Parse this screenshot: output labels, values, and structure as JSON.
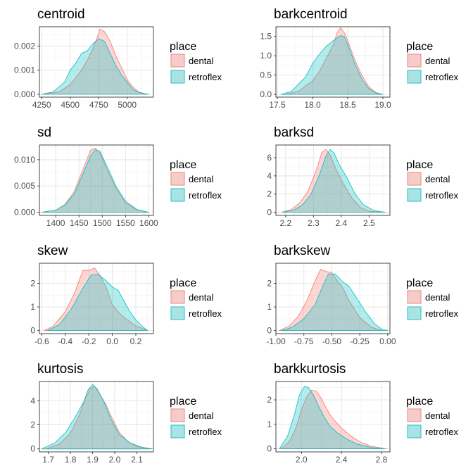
{
  "legend": {
    "title": "place",
    "items": [
      {
        "label": "dental",
        "fill": "#F8766D"
      },
      {
        "label": "retroflex",
        "fill": "#00BFC4"
      }
    ]
  },
  "chart_data": [
    {
      "type": "area",
      "title": "centroid",
      "xlim": [
        4230,
        5230
      ],
      "ylim": [
        -0.00012,
        0.0028
      ],
      "xticks": [
        4250,
        4500,
        4750,
        5000
      ],
      "xtick_labels": [
        "4250",
        "4500",
        "4750",
        "5000"
      ],
      "yticks": [
        0,
        0.001,
        0.002
      ],
      "ytick_labels": [
        "0.000",
        "0.001",
        "0.002"
      ],
      "legend_position": "right",
      "series": [
        {
          "name": "dental",
          "x": [
            4270,
            4400,
            4500,
            4600,
            4650,
            4700,
            4740,
            4760,
            4800,
            4850,
            4900,
            4950,
            5000,
            5050,
            5100,
            5150,
            5190
          ],
          "y": [
            0,
            0.0001,
            0.0004,
            0.001,
            0.0014,
            0.0019,
            0.0024,
            0.0027,
            0.0026,
            0.0022,
            0.0016,
            0.0011,
            0.0006,
            0.0003,
            0.0001,
            3e-05,
            0
          ]
        },
        {
          "name": "retroflex",
          "x": [
            4250,
            4350,
            4450,
            4500,
            4550,
            4600,
            4650,
            4700,
            4750,
            4800,
            4850,
            4900,
            4950,
            5000,
            5050,
            5100,
            5150,
            5190
          ],
          "y": [
            0,
            0.0001,
            0.0005,
            0.001,
            0.0013,
            0.0017,
            0.0018,
            0.0021,
            0.0023,
            0.0022,
            0.0017,
            0.0012,
            0.0008,
            0.0005,
            0.0002,
            8e-05,
            2e-05,
            0
          ]
        }
      ]
    },
    {
      "type": "area",
      "title": "barkcentroid",
      "xlim": [
        17.48,
        19.1
      ],
      "ylim": [
        -0.07,
        1.75
      ],
      "xticks": [
        17.5,
        18.0,
        18.5,
        19.0
      ],
      "xtick_labels": [
        "17.5",
        "18.0",
        "18.5",
        "19.0"
      ],
      "yticks": [
        0,
        0.5,
        1.0,
        1.5
      ],
      "ytick_labels": [
        "0.0",
        "0.5",
        "1.0",
        "1.5"
      ],
      "legend_position": "right",
      "series": [
        {
          "name": "dental",
          "x": [
            17.6,
            17.8,
            18.0,
            18.1,
            18.2,
            18.3,
            18.35,
            18.4,
            18.45,
            18.5,
            18.6,
            18.7,
            18.8,
            18.9,
            19.0
          ],
          "y": [
            0,
            0.08,
            0.35,
            0.6,
            0.95,
            1.3,
            1.6,
            1.72,
            1.6,
            1.4,
            0.9,
            0.5,
            0.2,
            0.05,
            0
          ]
        },
        {
          "name": "retroflex",
          "x": [
            17.55,
            17.7,
            17.9,
            18.0,
            18.1,
            18.2,
            18.3,
            18.4,
            18.45,
            18.5,
            18.6,
            18.7,
            18.8,
            18.9,
            19.0
          ],
          "y": [
            0,
            0.08,
            0.45,
            0.8,
            1.05,
            1.25,
            1.4,
            1.52,
            1.5,
            1.3,
            0.8,
            0.4,
            0.15,
            0.04,
            0
          ]
        }
      ]
    },
    {
      "type": "area",
      "title": "sd",
      "xlim": [
        1365,
        1610
      ],
      "ylim": [
        -0.0006,
        0.0128
      ],
      "xticks": [
        1400,
        1450,
        1500,
        1550,
        1600
      ],
      "xtick_labels": [
        "1400",
        "1450",
        "1500",
        "1550",
        "1600"
      ],
      "yticks": [
        0,
        0.005,
        0.01
      ],
      "ytick_labels": [
        "0.000",
        "0.005",
        "0.010"
      ],
      "legend_position": "right",
      "series": [
        {
          "name": "dental",
          "x": [
            1370,
            1400,
            1420,
            1440,
            1460,
            1475,
            1485,
            1495,
            1510,
            1530,
            1550,
            1575,
            1600
          ],
          "y": [
            0,
            0.0004,
            0.0015,
            0.004,
            0.0085,
            0.0118,
            0.0122,
            0.0113,
            0.0082,
            0.0045,
            0.0018,
            0.0004,
            0
          ]
        },
        {
          "name": "retroflex",
          "x": [
            1370,
            1400,
            1420,
            1440,
            1460,
            1475,
            1485,
            1495,
            1510,
            1530,
            1550,
            1575,
            1600
          ],
          "y": [
            0,
            0.0004,
            0.0014,
            0.0035,
            0.0076,
            0.0108,
            0.0119,
            0.0116,
            0.0088,
            0.0049,
            0.0021,
            0.0005,
            0
          ]
        }
      ]
    },
    {
      "type": "area",
      "title": "barksd",
      "xlim": [
        2.165,
        2.575
      ],
      "ylim": [
        -0.35,
        7.4
      ],
      "xticks": [
        2.2,
        2.3,
        2.4,
        2.5
      ],
      "xtick_labels": [
        "2.2",
        "2.3",
        "2.4",
        "2.5"
      ],
      "yticks": [
        0,
        2,
        4,
        6
      ],
      "ytick_labels": [
        "0",
        "2",
        "4",
        "6"
      ],
      "legend_position": "right",
      "series": [
        {
          "name": "dental",
          "x": [
            2.185,
            2.22,
            2.25,
            2.28,
            2.31,
            2.33,
            2.345,
            2.36,
            2.38,
            2.41,
            2.44,
            2.47,
            2.5,
            2.55
          ],
          "y": [
            0,
            0.3,
            1.0,
            2.3,
            4.6,
            6.6,
            6.9,
            6.3,
            4.8,
            3.0,
            1.5,
            0.5,
            0.1,
            0
          ]
        },
        {
          "name": "retroflex",
          "x": [
            2.19,
            2.23,
            2.26,
            2.29,
            2.32,
            2.345,
            2.36,
            2.375,
            2.39,
            2.42,
            2.45,
            2.48,
            2.52,
            2.56
          ],
          "y": [
            0,
            0.25,
            0.8,
            1.9,
            4.0,
            6.2,
            6.9,
            6.5,
            5.4,
            3.8,
            2.0,
            0.8,
            0.15,
            0
          ]
        }
      ]
    },
    {
      "type": "area",
      "title": "skew",
      "xlim": [
        -0.62,
        0.35
      ],
      "ylim": [
        -0.13,
        2.85
      ],
      "xticks": [
        -0.6,
        -0.4,
        -0.2,
        0.0,
        0.2
      ],
      "xtick_labels": [
        "-0.6",
        "-0.4",
        "-0.2",
        "0.0",
        "0.2"
      ],
      "yticks": [
        0,
        1,
        2
      ],
      "ytick_labels": [
        "0",
        "1",
        "2"
      ],
      "legend_position": "right",
      "series": [
        {
          "name": "dental",
          "x": [
            -0.58,
            -0.5,
            -0.4,
            -0.32,
            -0.25,
            -0.2,
            -0.15,
            -0.1,
            -0.05,
            0.0,
            0.05,
            0.1,
            0.2,
            0.3
          ],
          "y": [
            0,
            0.2,
            0.8,
            1.6,
            2.55,
            2.55,
            2.65,
            2.3,
            1.8,
            1.1,
            0.8,
            0.55,
            0.2,
            0
          ]
        },
        {
          "name": "retroflex",
          "x": [
            -0.55,
            -0.45,
            -0.35,
            -0.25,
            -0.18,
            -0.12,
            -0.05,
            0.0,
            0.05,
            0.1,
            0.15,
            0.2,
            0.25,
            0.3
          ],
          "y": [
            0,
            0.25,
            0.9,
            1.8,
            2.35,
            2.38,
            2.1,
            1.85,
            1.7,
            1.25,
            0.8,
            0.45,
            0.2,
            0
          ]
        }
      ]
    },
    {
      "type": "area",
      "title": "barkskew",
      "xlim": [
        -1.0,
        0.02
      ],
      "ylim": [
        -0.13,
        2.85
      ],
      "xticks": [
        -1.0,
        -0.75,
        -0.5,
        -0.25,
        0.0
      ],
      "xtick_labels": [
        "-1.00",
        "-0.75",
        "-0.50",
        "-0.25",
        "0.00"
      ],
      "yticks": [
        0,
        1,
        2
      ],
      "ytick_labels": [
        "0",
        "1",
        "2"
      ],
      "legend_position": "right",
      "series": [
        {
          "name": "dental",
          "x": [
            -0.97,
            -0.88,
            -0.8,
            -0.72,
            -0.65,
            -0.6,
            -0.55,
            -0.5,
            -0.45,
            -0.4,
            -0.35,
            -0.25,
            -0.15,
            -0.05
          ],
          "y": [
            0,
            0.2,
            0.6,
            1.3,
            2.1,
            2.6,
            2.5,
            2.45,
            2.1,
            1.8,
            1.3,
            0.55,
            0.15,
            0
          ]
        },
        {
          "name": "retroflex",
          "x": [
            -0.95,
            -0.85,
            -0.75,
            -0.65,
            -0.58,
            -0.53,
            -0.47,
            -0.4,
            -0.35,
            -0.28,
            -0.2,
            -0.12,
            -0.05,
            0.0
          ],
          "y": [
            0,
            0.15,
            0.5,
            1.1,
            1.9,
            2.4,
            2.4,
            2.05,
            1.9,
            1.4,
            0.8,
            0.3,
            0.05,
            0
          ]
        }
      ]
    },
    {
      "type": "area",
      "title": "kurtosis",
      "xlim": [
        1.66,
        2.175
      ],
      "ylim": [
        -0.25,
        5.6
      ],
      "xticks": [
        1.7,
        1.8,
        1.9,
        2.0,
        2.1
      ],
      "xtick_labels": [
        "1.7",
        "1.8",
        "1.9",
        "2.0",
        "2.1"
      ],
      "yticks": [
        0,
        2,
        4
      ],
      "ytick_labels": [
        "0",
        "2",
        "4"
      ],
      "legend_position": "right",
      "series": [
        {
          "name": "dental",
          "x": [
            1.69,
            1.75,
            1.8,
            1.84,
            1.87,
            1.89,
            1.91,
            1.93,
            1.96,
            1.99,
            2.02,
            2.06,
            2.1,
            2.16
          ],
          "y": [
            0,
            0.4,
            1.3,
            2.8,
            4.3,
            5.0,
            5.2,
            4.6,
            3.7,
            2.5,
            1.4,
            0.6,
            0.2,
            0
          ]
        },
        {
          "name": "retroflex",
          "x": [
            1.67,
            1.73,
            1.78,
            1.82,
            1.86,
            1.88,
            1.9,
            1.92,
            1.95,
            1.98,
            2.02,
            2.07,
            2.12,
            2.17
          ],
          "y": [
            0,
            0.5,
            1.4,
            2.6,
            3.9,
            4.9,
            5.35,
            5.0,
            4.0,
            2.6,
            1.2,
            0.5,
            0.15,
            0
          ]
        }
      ]
    },
    {
      "type": "area",
      "title": "barkkurtosis",
      "xlim": [
        1.745,
        2.885
      ],
      "ylim": [
        -0.13,
        2.75
      ],
      "xticks": [
        2.0,
        2.4,
        2.8
      ],
      "xtick_labels": [
        "2.0",
        "2.4",
        "2.8"
      ],
      "yticks": [
        0,
        1,
        2
      ],
      "ytick_labels": [
        "0",
        "1",
        "2"
      ],
      "legend_position": "right",
      "series": [
        {
          "name": "dental",
          "x": [
            1.8,
            1.88,
            1.95,
            2.0,
            2.05,
            2.1,
            2.15,
            2.2,
            2.25,
            2.3,
            2.4,
            2.5,
            2.6,
            2.7,
            2.85
          ],
          "y": [
            0,
            0.3,
            0.9,
            1.6,
            2.1,
            2.4,
            2.35,
            2.05,
            1.65,
            1.3,
            0.85,
            0.5,
            0.25,
            0.1,
            0
          ]
        },
        {
          "name": "retroflex",
          "x": [
            1.78,
            1.86,
            1.93,
            1.98,
            2.03,
            2.07,
            2.12,
            2.17,
            2.22,
            2.28,
            2.36,
            2.45,
            2.55,
            2.7,
            2.82
          ],
          "y": [
            0,
            0.5,
            1.4,
            2.2,
            2.55,
            2.5,
            2.2,
            1.75,
            1.35,
            0.95,
            0.65,
            0.4,
            0.2,
            0.05,
            0
          ]
        }
      ]
    }
  ]
}
